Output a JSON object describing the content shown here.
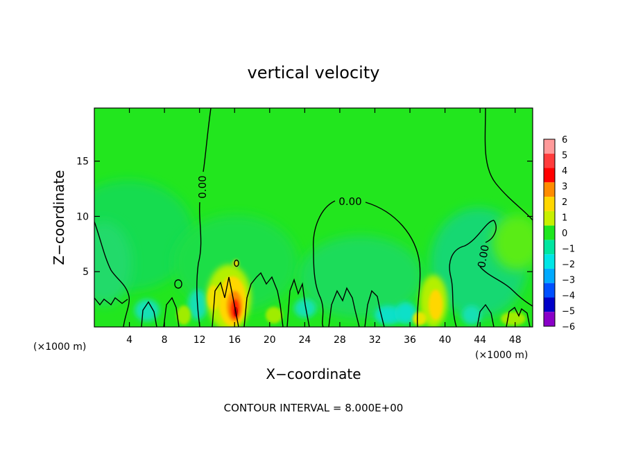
{
  "chart_data": {
    "type": "heatmap",
    "title": "vertical velocity",
    "xlabel": "X−coordinate",
    "ylabel": "Z−coordinate",
    "x_unit_left": "(×1000 m)",
    "x_unit_right": "(×1000 m)",
    "xlim": [
      0,
      50
    ],
    "ylim": [
      0,
      19.8
    ],
    "x_ticks": [
      4,
      8,
      12,
      16,
      20,
      24,
      28,
      32,
      36,
      40,
      44,
      48
    ],
    "y_ticks": [
      5,
      10,
      15
    ],
    "colorbar": {
      "levels": [
        6,
        5,
        4,
        3,
        2,
        1,
        0,
        -1,
        -2,
        -3,
        -4,
        -5,
        -6
      ],
      "labels": [
        "6",
        "5",
        "4",
        "3",
        "2",
        "1",
        "0",
        "−1",
        "−2",
        "−3",
        "−4",
        "−5",
        "−6"
      ],
      "colors": [
        "#ff9a9a",
        "#ff3c3c",
        "#ff0000",
        "#ff8c00",
        "#ffd700",
        "#c8f000",
        "#1ee61e",
        "#00e6a0",
        "#00e6e6",
        "#00aaff",
        "#0050ff",
        "#0000c8",
        "#8a00c8"
      ]
    },
    "contour_labels": [
      "0.00",
      "0.00",
      "0.00"
    ],
    "contour_interval_text": "CONTOUR INTERVAL = 8.000E+00",
    "features": [
      {
        "kind": "updraft-max",
        "x": 16.2,
        "z": 1.5,
        "value": 5.5
      },
      {
        "kind": "updraft",
        "x": 14.5,
        "z": 3.0,
        "value": 2.5
      },
      {
        "kind": "updraft",
        "x": 39.0,
        "z": 2.5,
        "value": 2
      },
      {
        "kind": "downdraft",
        "x": 2.0,
        "z": 7.5,
        "value": -1
      },
      {
        "kind": "downdraft",
        "x": 34.5,
        "z": 2.0,
        "value": -1.5
      }
    ],
    "grid": false,
    "legend_position": "right"
  }
}
